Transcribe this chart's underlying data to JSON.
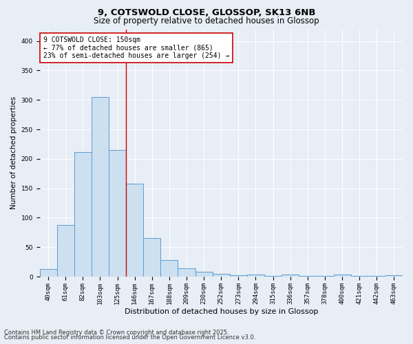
{
  "title_line1": "9, COTSWOLD CLOSE, GLOSSOP, SK13 6NB",
  "title_line2": "Size of property relative to detached houses in Glossop",
  "xlabel": "Distribution of detached houses by size in Glossop",
  "ylabel": "Number of detached properties",
  "bar_color": "#cce0f0",
  "bar_edge_color": "#5b9bd5",
  "background_color": "#e8eef5",
  "categories": [
    "40sqm",
    "61sqm",
    "82sqm",
    "103sqm",
    "125sqm",
    "146sqm",
    "167sqm",
    "188sqm",
    "209sqm",
    "230sqm",
    "252sqm",
    "273sqm",
    "294sqm",
    "315sqm",
    "336sqm",
    "357sqm",
    "378sqm",
    "400sqm",
    "421sqm",
    "442sqm",
    "463sqm"
  ],
  "values": [
    13,
    88,
    212,
    305,
    215,
    158,
    65,
    28,
    14,
    8,
    5,
    2,
    3,
    1,
    4,
    1,
    1,
    3,
    1,
    1,
    2
  ],
  "ylim": [
    0,
    420
  ],
  "yticks": [
    0,
    50,
    100,
    150,
    200,
    250,
    300,
    350,
    400
  ],
  "vline_position": 4.5,
  "vline_color": "#cc0000",
  "annotation_text": "9 COTSWOLD CLOSE: 150sqm\n← 77% of detached houses are smaller (865)\n23% of semi-detached houses are larger (254) →",
  "annotation_box_color": "#ffffff",
  "annotation_box_edge_color": "#cc0000",
  "footnote_line1": "Contains HM Land Registry data © Crown copyright and database right 2025.",
  "footnote_line2": "Contains public sector information licensed under the Open Government Licence v3.0.",
  "title_fontsize": 9.5,
  "subtitle_fontsize": 8.5,
  "tick_fontsize": 6.5,
  "xlabel_fontsize": 8,
  "ylabel_fontsize": 7.5,
  "annotation_fontsize": 7,
  "footnote_fontsize": 6
}
